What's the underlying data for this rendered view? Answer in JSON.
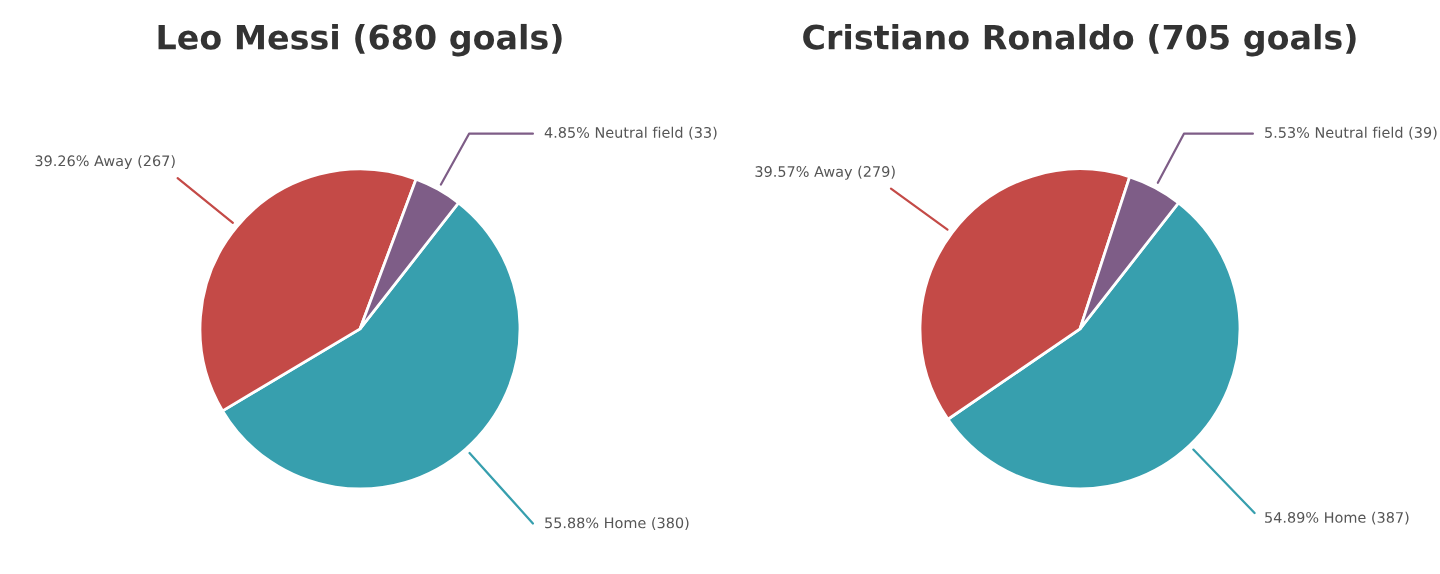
{
  "chart_data": [
    {
      "type": "pie",
      "title": "Leo Messi (680 goals)",
      "categories": [
        "Home (380)",
        "Away (267)",
        "Neutral field (33)"
      ],
      "values": [
        55.88,
        39.26,
        4.85
      ],
      "colors": [
        "#379fae",
        "#c44a47",
        "#7e5d87"
      ],
      "value_labels": [
        "55.88%",
        "39.26%",
        "4.85%"
      ]
    },
    {
      "type": "pie",
      "title": "Cristiano Ronaldo (705 goals)",
      "categories": [
        "Home (387)",
        "Away (279)",
        "Neutral field (39)"
      ],
      "values": [
        54.89,
        39.57,
        5.53
      ],
      "colors": [
        "#379fae",
        "#c44a47",
        "#7e5d87"
      ],
      "value_labels": [
        "54.89%",
        "39.57%",
        "5.53%"
      ]
    }
  ]
}
